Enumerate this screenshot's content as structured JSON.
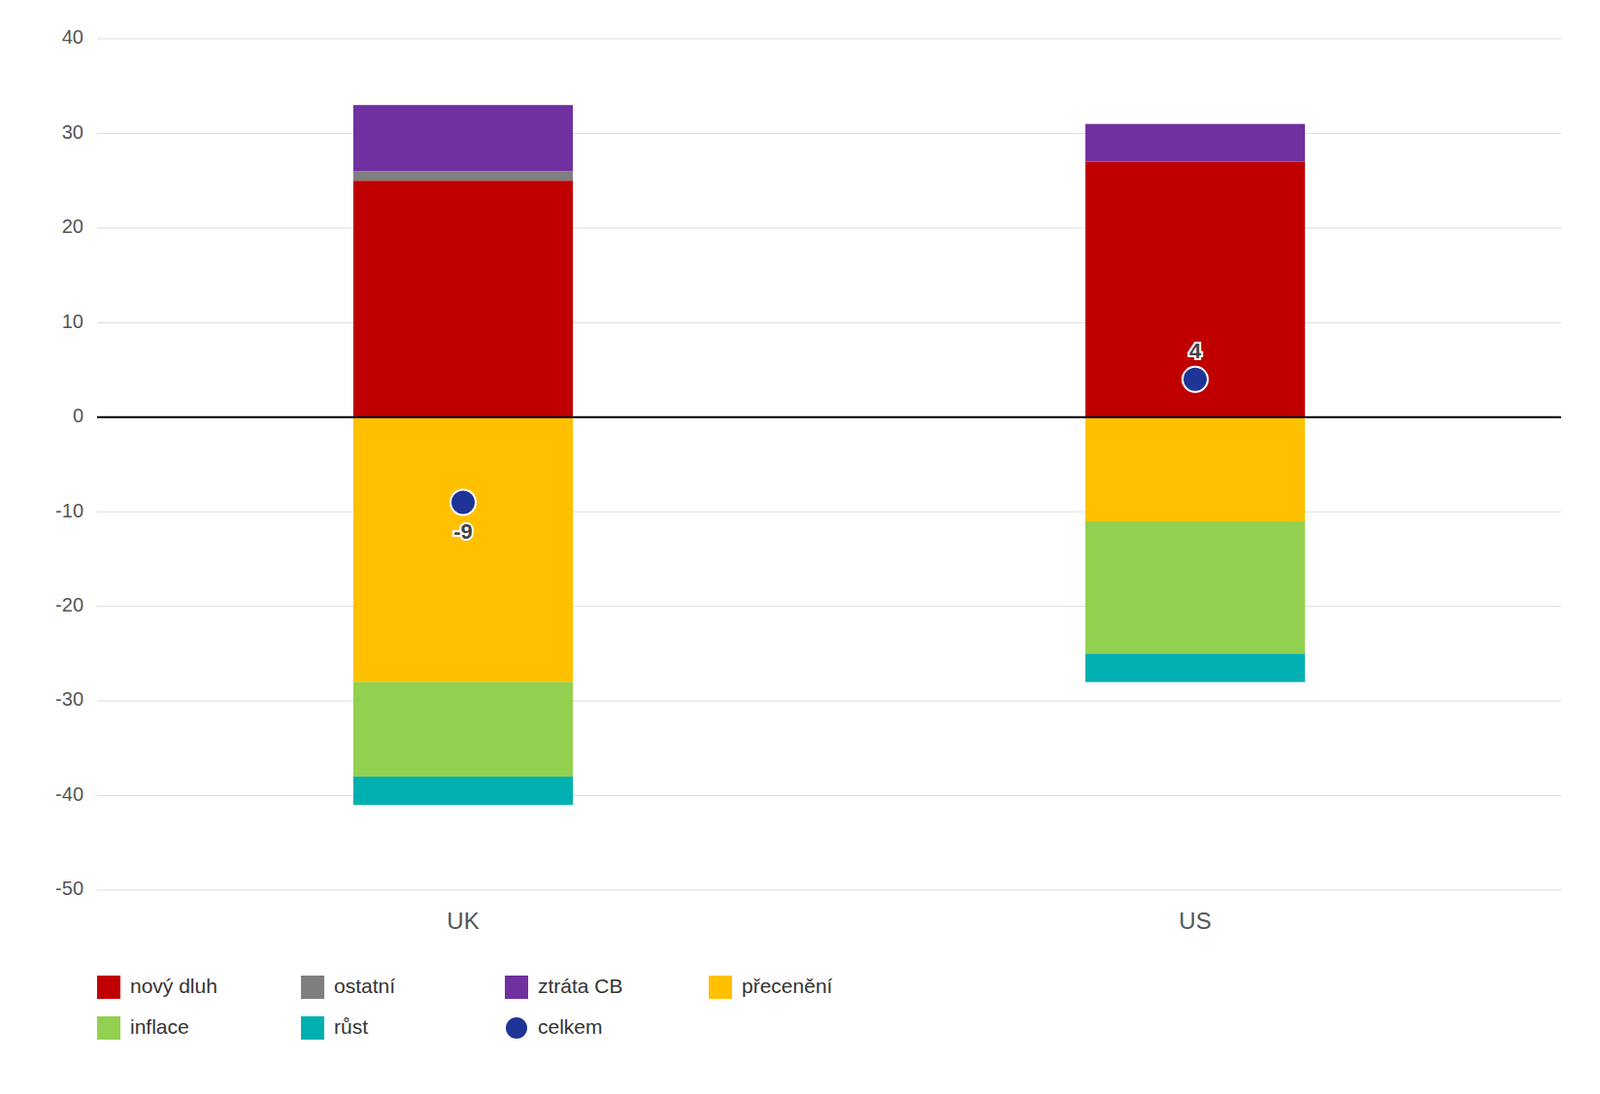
{
  "chart_data": {
    "type": "bar",
    "stacked": true,
    "grid": true,
    "legend": "bottom",
    "categories": [
      "UK",
      "US"
    ],
    "ylim": [
      -50,
      40
    ],
    "yticks": [
      -50,
      -40,
      -30,
      -20,
      -10,
      0,
      10,
      20,
      30,
      40
    ],
    "series": [
      {
        "name": "nový dluh",
        "color": "#C00000",
        "values": [
          25,
          27
        ]
      },
      {
        "name": "ostatní",
        "color": "#7F7F7F",
        "values": [
          1,
          0
        ]
      },
      {
        "name": "ztráta CB",
        "color": "#7030A0",
        "values": [
          7,
          4
        ]
      },
      {
        "name": "přecenění",
        "color": "#FFC000",
        "values": [
          -28,
          -11
        ]
      },
      {
        "name": "inflace",
        "color": "#92D050",
        "values": [
          -10,
          -14
        ]
      },
      {
        "name": "růst",
        "color": "#00B0B0",
        "values": [
          -3,
          -3
        ]
      },
      {
        "name": "celkem",
        "type": "scatter",
        "color": "#1F3497",
        "values": [
          -9,
          4
        ],
        "data_labels": true
      }
    ]
  }
}
